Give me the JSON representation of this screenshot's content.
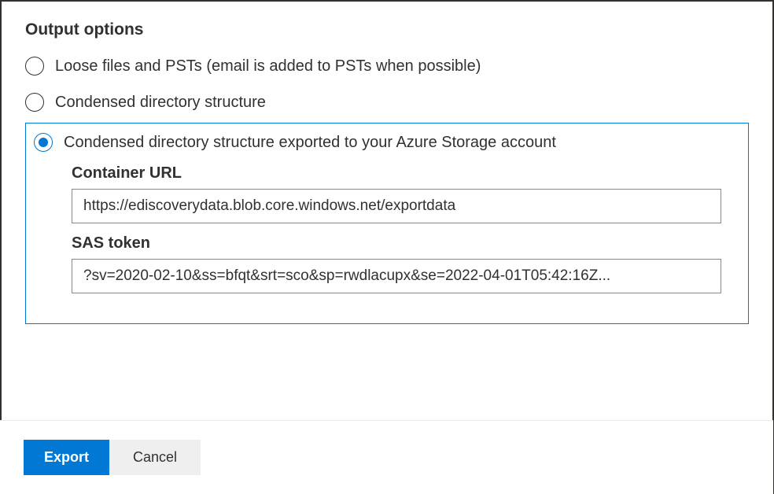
{
  "section_title": "Output options",
  "options": {
    "option1": {
      "label": "Loose files and PSTs (email is added to PSTs when possible)",
      "selected": false
    },
    "option2": {
      "label": "Condensed directory structure",
      "selected": false
    },
    "option3": {
      "label": "Condensed directory structure exported to your Azure Storage account",
      "selected": true
    }
  },
  "fields": {
    "container_url": {
      "label": "Container URL",
      "value": "https://ediscoverydata.blob.core.windows.net/exportdata"
    },
    "sas_token": {
      "label": "SAS token",
      "value": "?sv=2020-02-10&ss=bfqt&srt=sco&sp=rwdlacupx&se=2022-04-01T05:42:16Z..."
    }
  },
  "buttons": {
    "export": "Export",
    "cancel": "Cancel"
  },
  "colors": {
    "primary": "#0078d4",
    "text": "#323130",
    "border": "#8a8886",
    "divider": "#edebe9",
    "secondary_bg": "#efefef"
  }
}
